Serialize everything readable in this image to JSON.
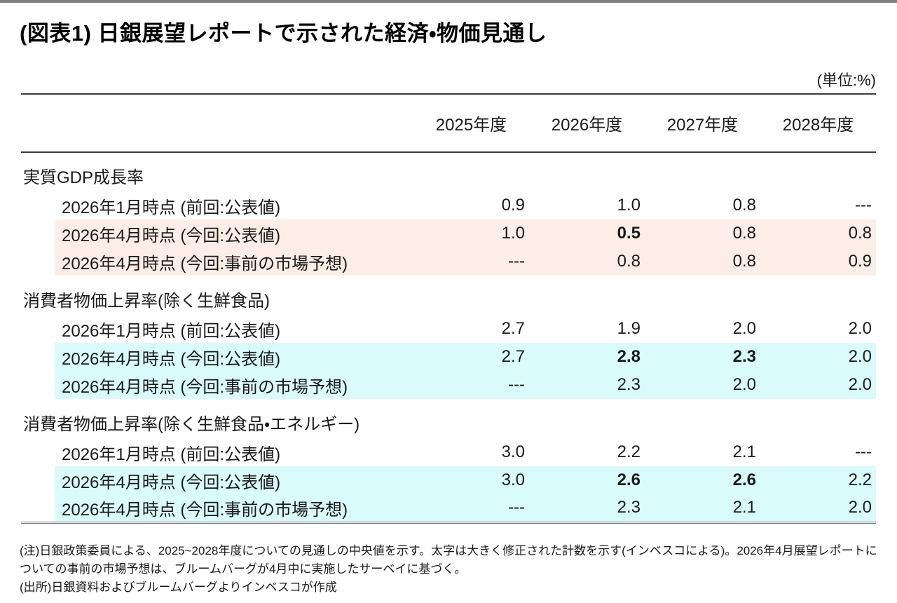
{
  "page": {
    "title": "(図表1) 日銀展望レポートで示された経済・物価見通し",
    "unit_label": "(単位:%)"
  },
  "colors": {
    "top_bar": "#808080",
    "highlight_gdp": "#fceee6",
    "highlight_cpi": "#dafbfc",
    "rule": "#3d3d3d"
  },
  "table": {
    "year_headers": [
      "2025年度",
      "2026年度",
      "2027年度",
      "2028年度"
    ],
    "sections": [
      {
        "name": "実質GDP成長率",
        "rows": [
          {
            "label": "2026年1月時点 (前回:公表値)",
            "values": [
              "0.9",
              "1.0",
              "0.8",
              "---"
            ],
            "highlighted": false,
            "bold_columns": []
          },
          {
            "label": "2026年4月時点 (今回:公表値)",
            "values": [
              "1.0",
              "0.5",
              "0.8",
              "0.8"
            ],
            "highlighted": true,
            "bold_columns": [
              1
            ]
          },
          {
            "label": "2026年4月時点 (今回:事前の市場予想)",
            "values": [
              "---",
              "0.8",
              "0.8",
              "0.9"
            ],
            "highlighted": true,
            "bold_columns": []
          }
        ]
      },
      {
        "name": "消費者物価上昇率(除く生鮮食品)",
        "rows": [
          {
            "label": "2026年1月時点 (前回:公表値)",
            "values": [
              "2.7",
              "1.9",
              "2.0",
              "2.0"
            ],
            "highlighted": false,
            "bold_columns": []
          },
          {
            "label": "2026年4月時点 (今回:公表値)",
            "values": [
              "2.7",
              "2.8",
              "2.3",
              "2.0"
            ],
            "highlighted": true,
            "bold_columns": [
              1,
              2
            ]
          },
          {
            "label": "2026年4月時点 (今回:事前の市場予想)",
            "values": [
              "---",
              "2.3",
              "2.0",
              "2.0"
            ],
            "highlighted": true,
            "bold_columns": []
          }
        ]
      },
      {
        "name": "消費者物価上昇率(除く生鮮食品・エネルギー)",
        "rows": [
          {
            "label": "2026年1月時点 (前回:公表値)",
            "values": [
              "3.0",
              "2.2",
              "2.1",
              "---"
            ],
            "highlighted": false,
            "bold_columns": []
          },
          {
            "label": "2026年4月時点 (今回:公表値)",
            "values": [
              "3.0",
              "2.6",
              "2.6",
              "2.2"
            ],
            "highlighted": true,
            "bold_columns": [
              1,
              2
            ]
          },
          {
            "label": "2026年4月時点 (今回:事前の市場予想)",
            "values": [
              "---",
              "2.3",
              "2.1",
              "2.0"
            ],
            "highlighted": true,
            "bold_columns": []
          }
        ]
      }
    ]
  },
  "notes": {
    "note": "(注)日銀政策委員による、2025~2028年度についての見通しの中央値を示す。太字は大きく修正された計数を示す(インベスコによる)。2026年4月展望レポートについての事前の市場予想は、ブルームバーグが4月中に実施したサーベイに基づく。",
    "source": "(出所)日銀資料およびブルームバーグよりインベスコが作成"
  }
}
